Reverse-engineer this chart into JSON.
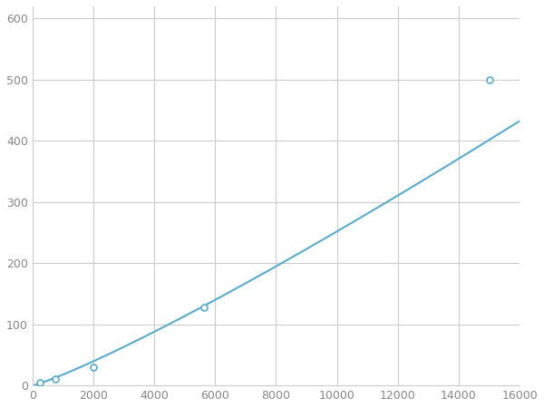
{
  "x": [
    250,
    750,
    2000,
    5625,
    15000
  ],
  "y": [
    5,
    10,
    30,
    128,
    500
  ],
  "line_color": "#5aabcc",
  "marker_color": "#5aabcc",
  "marker_size": 5,
  "line_width": 1.5,
  "xlim": [
    0,
    16000
  ],
  "ylim": [
    0,
    620
  ],
  "xticks": [
    0,
    2000,
    4000,
    6000,
    8000,
    10000,
    12000,
    14000,
    16000
  ],
  "yticks": [
    0,
    100,
    200,
    300,
    400,
    500,
    600
  ],
  "grid_color": "#cccccc",
  "background_color": "#ffffff",
  "spine_color": "#cccccc",
  "tick_label_color": "#888888",
  "tick_label_size": 9
}
